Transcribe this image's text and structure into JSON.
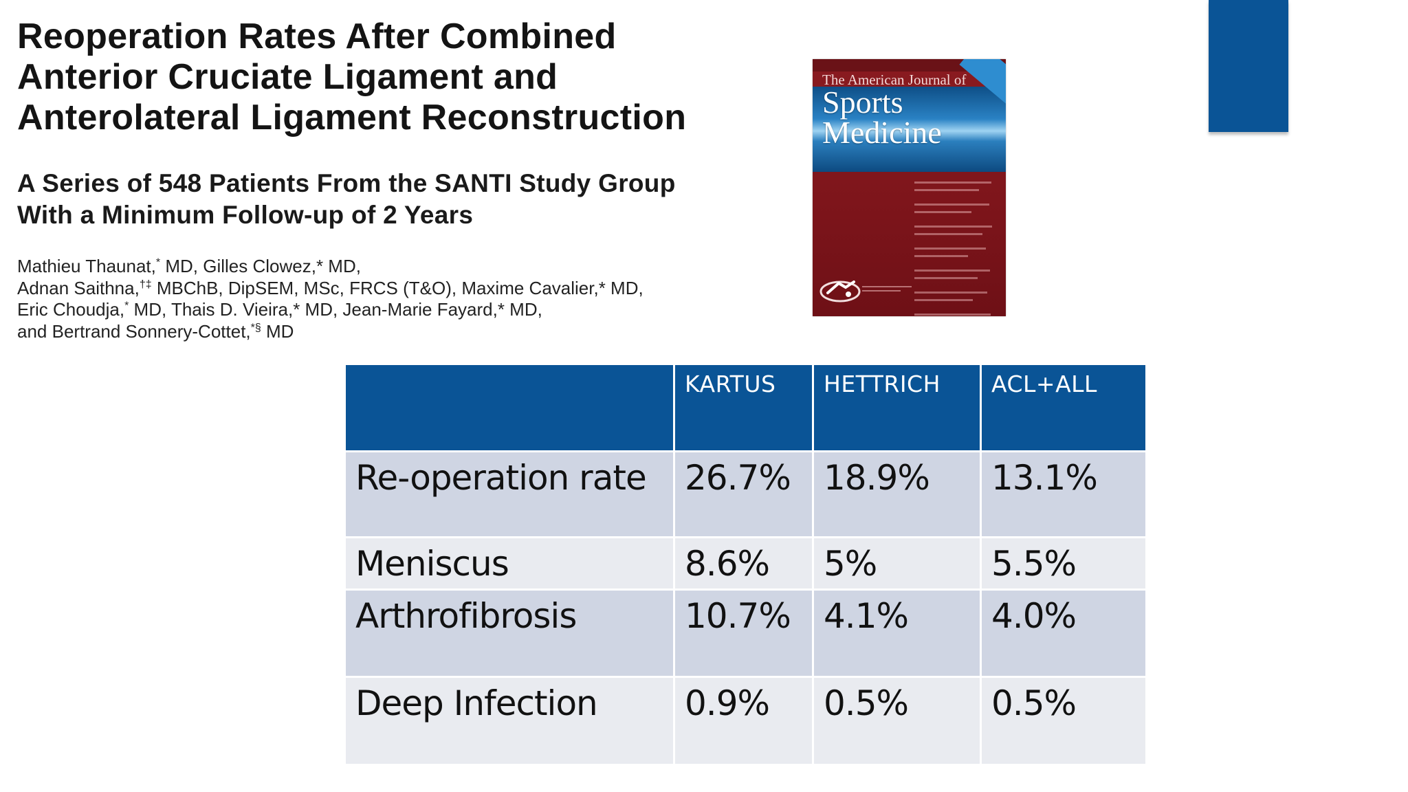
{
  "paper": {
    "title_lines": [
      "Reoperation Rates After Combined",
      "Anterior Cruciate Ligament and",
      "Anterolateral Ligament Reconstruction"
    ],
    "subtitle_lines": [
      "A Series of 548 Patients From the SANTI Study Group",
      "With a Minimum Follow-up of 2 Years"
    ],
    "authors": [
      {
        "pre": "Mathieu Thaunat,",
        "sup": "*",
        "post": " MD, Gilles Clowez,* MD,"
      },
      {
        "pre": "Adnan Saithna,",
        "sup": "†‡",
        "post": " MBChB, DipSEM, MSc, FRCS (T&O), Maxime Cavalier,* MD,"
      },
      {
        "pre": "Eric Choudja,",
        "sup": "*",
        "post": " MD, Thais D. Vieira,* MD, Jean-Marie Fayard,* MD,"
      },
      {
        "pre": "and Bertrand Sonnery-Cottet,",
        "sup": "*§",
        "post": " MD"
      }
    ]
  },
  "journal_cover": {
    "journal_of": "The American Journal of",
    "sports": "Sports",
    "medicine": "Medicine",
    "bg_color": "#7e151b",
    "band_color": "#1f6fb0"
  },
  "table": {
    "headers": [
      "",
      "KARTUS",
      "HETTRICH",
      "ACL+ALL"
    ],
    "rows": [
      [
        "Re-operation rate",
        "26.7%",
        "18.9%",
        "13.1%"
      ],
      [
        "Meniscus",
        "8.6%",
        "5%",
        "5.5%"
      ],
      [
        "Arthrofibrosis",
        "10.7%",
        "4.1%",
        "4.0%"
      ],
      [
        "Deep Infection",
        "0.9%",
        "0.5%",
        "0.5%"
      ]
    ],
    "header_color": "#0a5496",
    "row_odd_color": "#cfd5e3",
    "row_even_color": "#e9ebf0"
  },
  "accent_color": "#0a5496"
}
